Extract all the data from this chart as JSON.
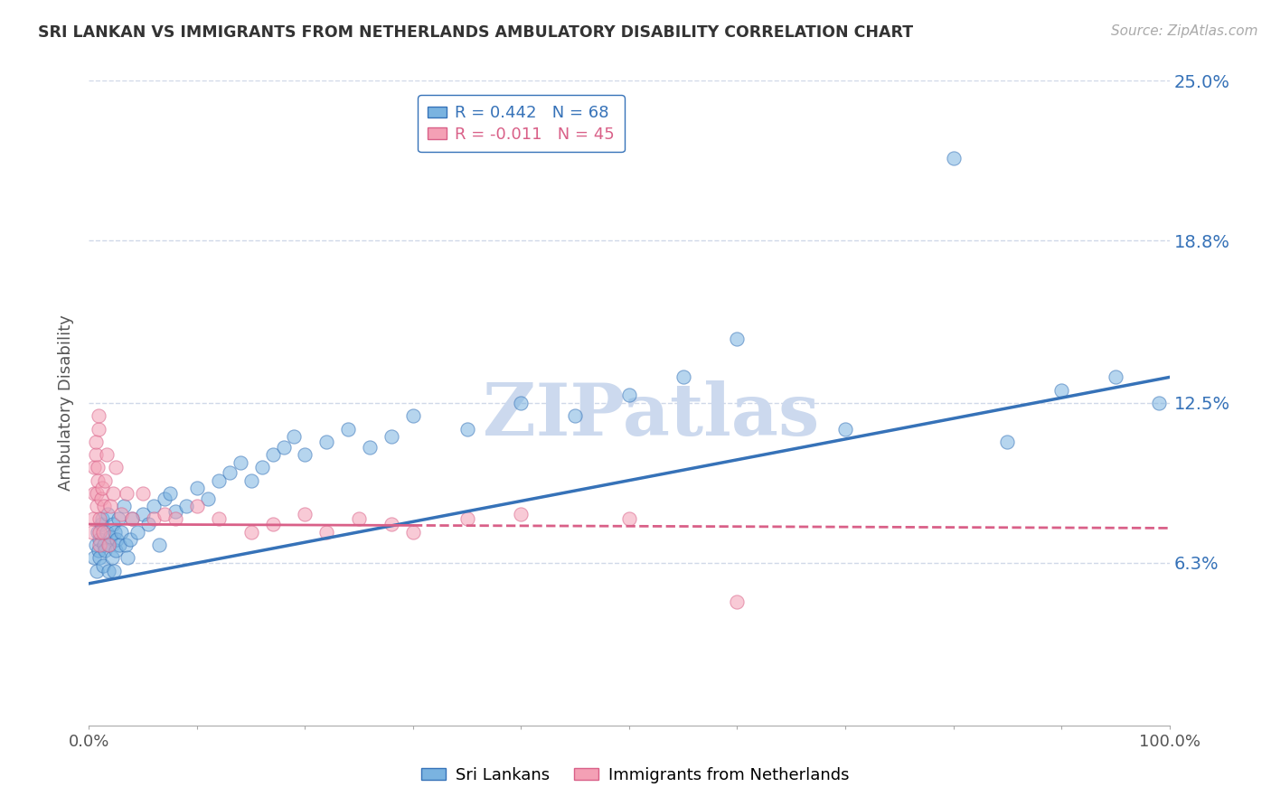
{
  "title": "SRI LANKAN VS IMMIGRANTS FROM NETHERLANDS AMBULATORY DISABILITY CORRELATION CHART",
  "source": "Source: ZipAtlas.com",
  "ylabel": "Ambulatory Disability",
  "xlim": [
    0.0,
    100.0
  ],
  "ylim": [
    0.0,
    25.0
  ],
  "yticks": [
    6.3,
    12.5,
    18.8,
    25.0
  ],
  "ytick_labels": [
    "6.3%",
    "12.5%",
    "18.8%",
    "25.0%"
  ],
  "blue_R": 0.442,
  "blue_N": 68,
  "pink_R": -0.011,
  "pink_N": 45,
  "blue_color": "#7ab3e0",
  "pink_color": "#f4a0b5",
  "blue_line_color": "#3672b8",
  "pink_line_color": "#d96088",
  "grid_color": "#d0d8e8",
  "background_color": "#ffffff",
  "watermark": "ZIPatlas",
  "watermark_color": "#ccd9ee",
  "legend_label_blue": "Sri Lankans",
  "legend_label_pink": "Immigrants from Netherlands",
  "blue_x": [
    0.5,
    0.6,
    0.7,
    0.8,
    0.9,
    1.0,
    1.0,
    1.1,
    1.2,
    1.3,
    1.4,
    1.5,
    1.6,
    1.7,
    1.8,
    1.9,
    2.0,
    2.1,
    2.2,
    2.3,
    2.4,
    2.5,
    2.6,
    2.7,
    2.8,
    3.0,
    3.2,
    3.4,
    3.6,
    3.8,
    4.0,
    4.5,
    5.0,
    5.5,
    6.0,
    6.5,
    7.0,
    7.5,
    8.0,
    9.0,
    10.0,
    11.0,
    12.0,
    13.0,
    14.0,
    15.0,
    16.0,
    17.0,
    18.0,
    19.0,
    20.0,
    22.0,
    24.0,
    26.0,
    28.0,
    30.0,
    35.0,
    40.0,
    45.0,
    50.0,
    55.0,
    60.0,
    70.0,
    80.0,
    85.0,
    90.0,
    95.0,
    99.0
  ],
  "blue_y": [
    6.5,
    7.0,
    6.0,
    7.5,
    6.8,
    7.2,
    6.5,
    7.8,
    8.0,
    6.2,
    7.0,
    6.8,
    7.5,
    8.2,
    6.0,
    7.0,
    7.3,
    6.5,
    7.8,
    6.0,
    7.5,
    6.8,
    7.2,
    8.0,
    7.0,
    7.5,
    8.5,
    7.0,
    6.5,
    7.2,
    8.0,
    7.5,
    8.2,
    7.8,
    8.5,
    7.0,
    8.8,
    9.0,
    8.3,
    8.5,
    9.2,
    8.8,
    9.5,
    9.8,
    10.2,
    9.5,
    10.0,
    10.5,
    10.8,
    11.2,
    10.5,
    11.0,
    11.5,
    10.8,
    11.2,
    12.0,
    11.5,
    12.5,
    12.0,
    12.8,
    13.5,
    15.0,
    11.5,
    22.0,
    11.0,
    13.0,
    13.5,
    12.5
  ],
  "pink_x": [
    0.3,
    0.4,
    0.5,
    0.5,
    0.6,
    0.6,
    0.7,
    0.7,
    0.8,
    0.8,
    0.9,
    0.9,
    1.0,
    1.0,
    1.0,
    1.1,
    1.2,
    1.3,
    1.4,
    1.5,
    1.6,
    1.8,
    2.0,
    2.2,
    2.5,
    3.0,
    3.5,
    4.0,
    5.0,
    6.0,
    7.0,
    8.0,
    10.0,
    12.0,
    15.0,
    17.0,
    20.0,
    22.0,
    25.0,
    28.0,
    30.0,
    35.0,
    40.0,
    50.0,
    60.0
  ],
  "pink_y": [
    7.5,
    8.0,
    9.0,
    10.0,
    10.5,
    11.0,
    8.5,
    9.0,
    9.5,
    10.0,
    11.5,
    12.0,
    7.0,
    7.5,
    8.0,
    8.8,
    9.2,
    7.5,
    8.5,
    9.5,
    10.5,
    7.0,
    8.5,
    9.0,
    10.0,
    8.2,
    9.0,
    8.0,
    9.0,
    8.0,
    8.2,
    8.0,
    8.5,
    8.0,
    7.5,
    7.8,
    8.2,
    7.5,
    8.0,
    7.8,
    7.5,
    8.0,
    8.2,
    8.0,
    4.8
  ],
  "blue_trend_x": [
    0,
    100
  ],
  "blue_trend_y": [
    5.5,
    13.5
  ],
  "pink_trend_x": [
    0,
    100
  ],
  "pink_trend_y": [
    7.8,
    7.65
  ]
}
